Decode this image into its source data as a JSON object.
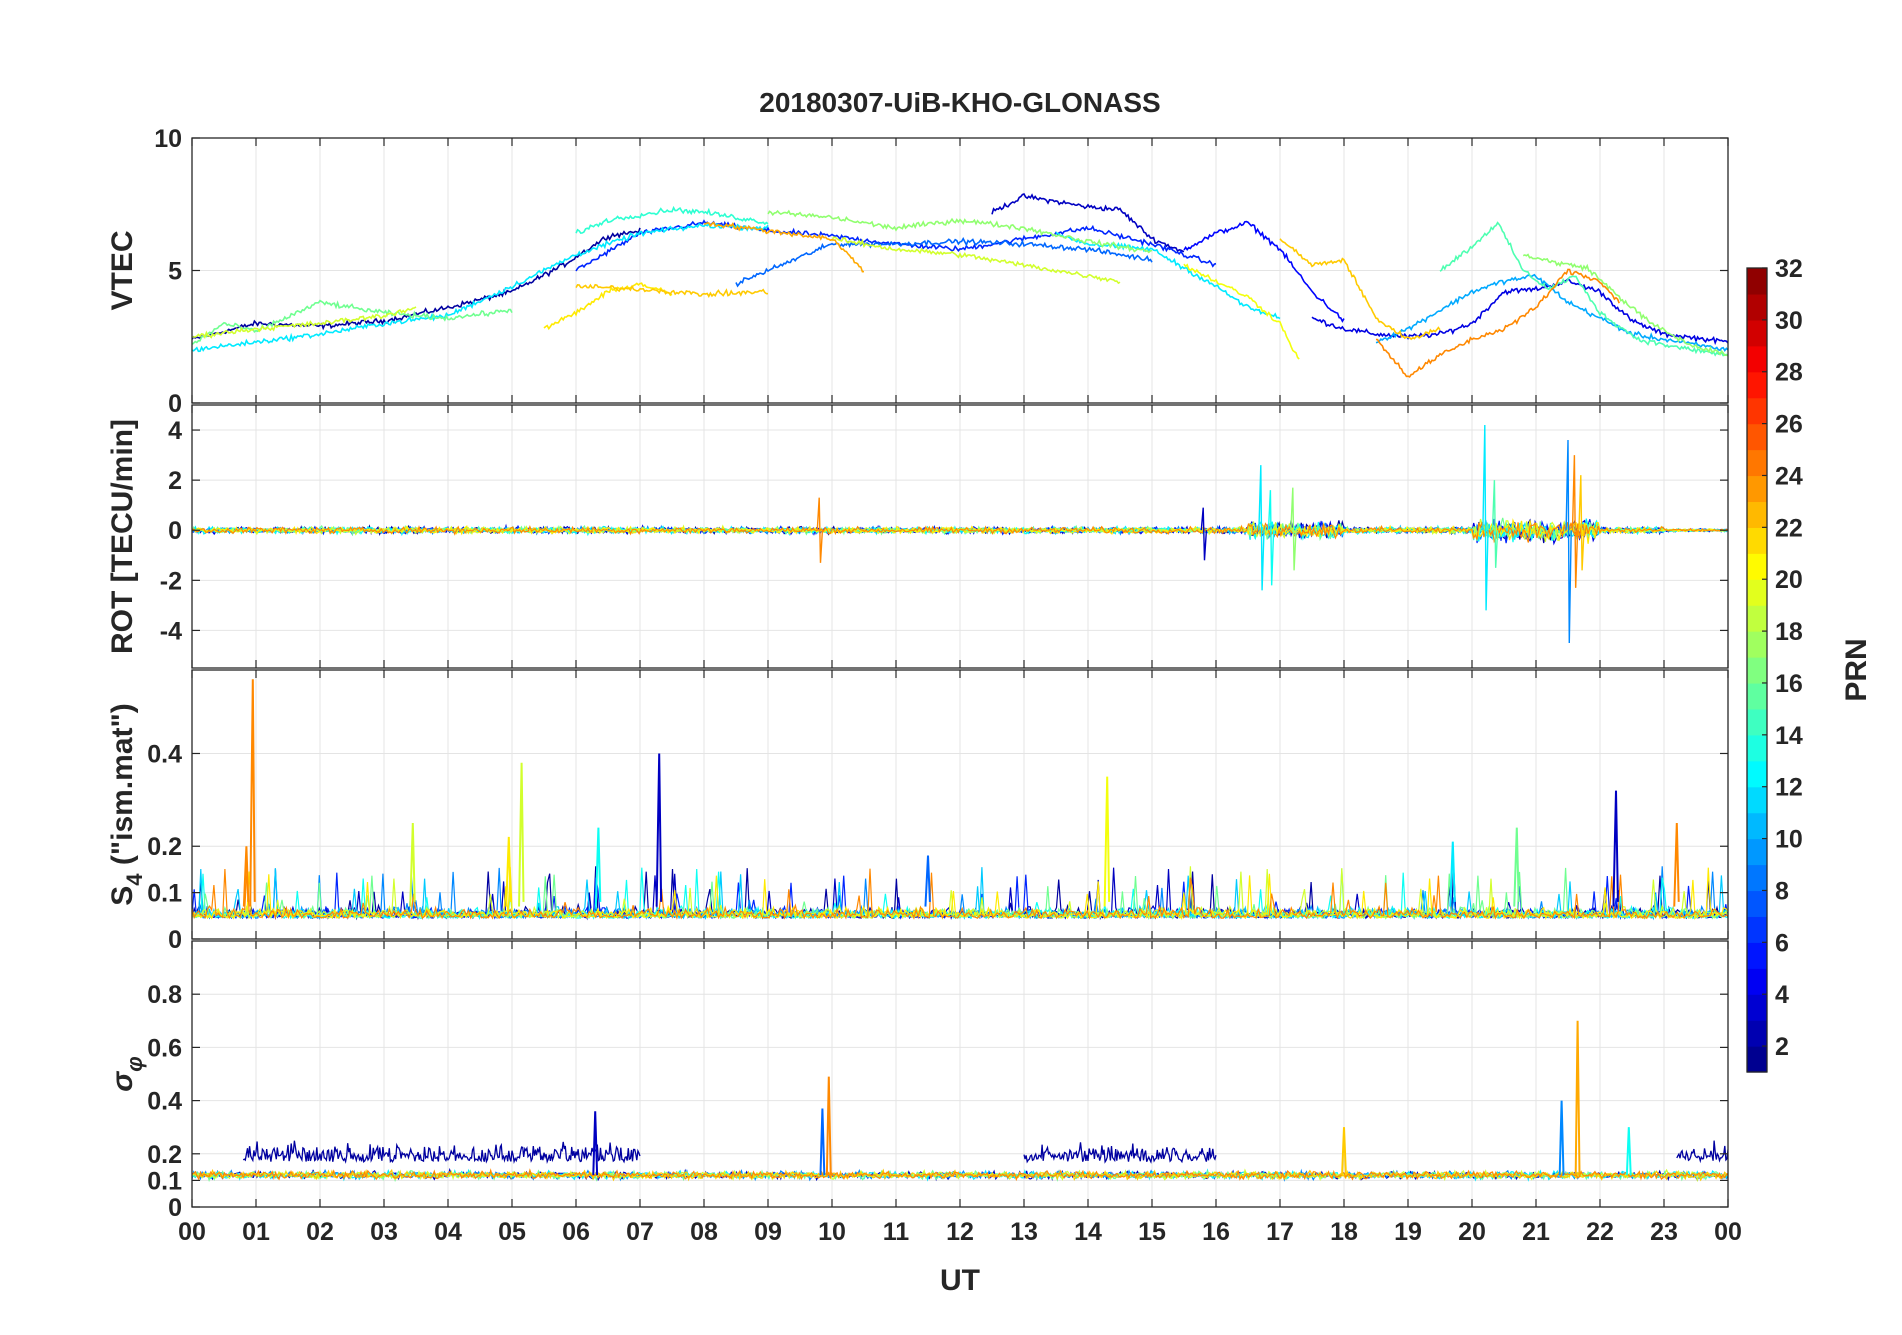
{
  "chart_data": {
    "title": "20180307-UiB-KHO-GLONASS",
    "type": "line",
    "xlabel": "UT",
    "xlim": [
      0,
      24
    ],
    "x_tick_labels": [
      "00",
      "01",
      "02",
      "03",
      "04",
      "05",
      "06",
      "07",
      "08",
      "09",
      "10",
      "11",
      "12",
      "13",
      "14",
      "15",
      "16",
      "17",
      "18",
      "19",
      "20",
      "21",
      "22",
      "23",
      "00"
    ],
    "colorbar": {
      "label": "PRN",
      "range": [
        1,
        32
      ],
      "ticks": [
        "2",
        "4",
        "6",
        "8",
        "10",
        "12",
        "14",
        "16",
        "18",
        "20",
        "22",
        "24",
        "26",
        "28",
        "30",
        "32"
      ],
      "colormap": "jet"
    },
    "panels": [
      {
        "ylabel": "VTEC",
        "ylim": [
          0,
          10
        ],
        "y_ticks": [
          0,
          5,
          10
        ],
        "y_tick_labels": [
          "0",
          "5",
          "10"
        ],
        "series": [
          {
            "prn": 2,
            "points": [
              [
                0.0,
                2.4
              ],
              [
                1.0,
                3.0
              ],
              [
                2.0,
                2.9
              ],
              [
                3.0,
                3.1
              ],
              [
                4.0,
                3.6
              ],
              [
                5.0,
                4.2
              ],
              [
                5.8,
                5.2
              ],
              [
                6.5,
                6.3
              ],
              [
                7.0,
                6.5
              ]
            ]
          },
          {
            "prn": 3,
            "points": [
              [
                12.5,
                7.2
              ],
              [
                13.0,
                7.8
              ],
              [
                13.5,
                7.6
              ],
              [
                14.0,
                7.4
              ],
              [
                14.5,
                7.3
              ],
              [
                15.0,
                6.2
              ],
              [
                15.5,
                5.7
              ]
            ]
          },
          {
            "prn": 4,
            "points": [
              [
                17.5,
                3.2
              ],
              [
                18.0,
                2.8
              ],
              [
                18.5,
                2.6
              ],
              [
                19.0,
                2.5
              ],
              [
                19.5,
                2.6
              ],
              [
                20.0,
                3.0
              ],
              [
                20.5,
                4.2
              ],
              [
                21.0,
                4.3
              ],
              [
                21.5,
                4.6
              ],
              [
                22.0,
                4.2
              ],
              [
                22.5,
                3.1
              ],
              [
                23.0,
                2.6
              ],
              [
                24.0,
                2.3
              ]
            ]
          },
          {
            "prn": 5,
            "points": [
              [
                15.5,
                5.8
              ],
              [
                16.0,
                6.4
              ],
              [
                16.5,
                6.8
              ],
              [
                17.0,
                5.8
              ],
              [
                17.5,
                4.2
              ],
              [
                18.0,
                3.1
              ]
            ]
          },
          {
            "prn": 6,
            "points": [
              [
                6.0,
                5.0
              ],
              [
                7.0,
                6.4
              ],
              [
                8.0,
                6.8
              ],
              [
                9.0,
                6.5
              ],
              [
                10.0,
                6.3
              ],
              [
                11.0,
                6.0
              ],
              [
                12.0,
                5.8
              ],
              [
                13.0,
                6.2
              ],
              [
                14.0,
                6.6
              ],
              [
                15.0,
                6.0
              ],
              [
                16.0,
                5.2
              ]
            ]
          },
          {
            "prn": 8,
            "points": [
              [
                8.5,
                4.5
              ],
              [
                9.0,
                5.0
              ],
              [
                10.0,
                6.0
              ],
              [
                11.0,
                6.0
              ],
              [
                12.0,
                6.1
              ],
              [
                13.0,
                6.0
              ],
              [
                14.0,
                5.8
              ],
              [
                15.0,
                5.4
              ]
            ]
          },
          {
            "prn": 10,
            "points": [
              [
                18.5,
                2.3
              ],
              [
                19.0,
                2.8
              ],
              [
                19.5,
                3.5
              ],
              [
                20.0,
                4.2
              ],
              [
                20.5,
                4.6
              ],
              [
                21.0,
                4.8
              ],
              [
                21.5,
                3.8
              ],
              [
                22.0,
                3.2
              ],
              [
                22.5,
                2.6
              ],
              [
                23.0,
                2.4
              ],
              [
                24.0,
                2.0
              ]
            ]
          },
          {
            "prn": 12,
            "points": [
              [
                0.0,
                2.0
              ],
              [
                1.0,
                2.3
              ],
              [
                2.0,
                2.6
              ],
              [
                3.0,
                3.0
              ],
              [
                4.0,
                3.3
              ],
              [
                5.0,
                4.4
              ],
              [
                6.0,
                5.6
              ],
              [
                7.0,
                6.4
              ],
              [
                8.0,
                6.7
              ],
              [
                9.0,
                6.6
              ]
            ]
          },
          {
            "prn": 12,
            "points": [
              [
                13.5,
                6.4
              ],
              [
                14.0,
                6.0
              ],
              [
                15.0,
                5.8
              ],
              [
                16.0,
                4.4
              ],
              [
                16.5,
                3.6
              ],
              [
                17.0,
                3.2
              ]
            ]
          },
          {
            "prn": 14,
            "points": [
              [
                6.0,
                6.4
              ],
              [
                6.5,
                6.9
              ],
              [
                7.0,
                7.1
              ],
              [
                7.5,
                7.3
              ],
              [
                8.0,
                7.2
              ],
              [
                8.5,
                7.0
              ],
              [
                9.0,
                6.8
              ]
            ]
          },
          {
            "prn": 15,
            "points": [
              [
                19.5,
                5.0
              ],
              [
                20.0,
                5.9
              ],
              [
                20.4,
                6.8
              ],
              [
                20.8,
                5.0
              ],
              [
                21.2,
                4.3
              ],
              [
                21.6,
                4.8
              ],
              [
                22.0,
                3.4
              ],
              [
                22.6,
                2.4
              ],
              [
                23.2,
                2.1
              ],
              [
                24.0,
                1.8
              ]
            ]
          },
          {
            "prn": 16,
            "points": [
              [
                0.0,
                2.2
              ],
              [
                0.5,
                3.0
              ],
              [
                1.0,
                2.7
              ],
              [
                2.0,
                3.8
              ],
              [
                3.0,
                3.4
              ],
              [
                4.0,
                3.2
              ],
              [
                5.0,
                3.5
              ]
            ]
          },
          {
            "prn": 17,
            "points": [
              [
                9.0,
                7.2
              ],
              [
                10.0,
                7.0
              ],
              [
                11.0,
                6.6
              ],
              [
                12.0,
                6.9
              ],
              [
                13.0,
                6.6
              ],
              [
                14.0,
                6.1
              ],
              [
                15.0,
                5.7
              ]
            ]
          },
          {
            "prn": 17,
            "points": [
              [
                20.8,
                5.6
              ],
              [
                21.3,
                5.3
              ],
              [
                21.8,
                5.1
              ],
              [
                22.3,
                4.0
              ],
              [
                22.8,
                3.0
              ],
              [
                23.4,
                2.2
              ],
              [
                24.0,
                1.8
              ]
            ]
          },
          {
            "prn": 19,
            "points": [
              [
                0.0,
                2.5
              ],
              [
                1.0,
                2.8
              ],
              [
                2.0,
                3.0
              ],
              [
                3.0,
                3.3
              ],
              [
                3.5,
                3.6
              ]
            ]
          },
          {
            "prn": 19,
            "points": [
              [
                10.0,
                6.2
              ],
              [
                11.0,
                5.8
              ],
              [
                12.0,
                5.6
              ],
              [
                13.0,
                5.2
              ],
              [
                14.0,
                4.8
              ],
              [
                14.5,
                4.6
              ]
            ]
          },
          {
            "prn": 20,
            "points": [
              [
                15.5,
                5.2
              ],
              [
                16.0,
                4.6
              ],
              [
                16.5,
                4.0
              ],
              [
                17.0,
                3.0
              ],
              [
                17.3,
                1.6
              ]
            ]
          },
          {
            "prn": 21,
            "points": [
              [
                5.5,
                2.8
              ],
              [
                6.0,
                3.4
              ],
              [
                6.5,
                4.2
              ],
              [
                7.0,
                4.5
              ],
              [
                7.5,
                4.1
              ]
            ]
          },
          {
            "prn": 22,
            "points": [
              [
                6.0,
                4.4
              ],
              [
                7.0,
                4.3
              ],
              [
                8.0,
                4.1
              ],
              [
                9.0,
                4.2
              ]
            ]
          },
          {
            "prn": 22,
            "points": [
              [
                17.0,
                6.2
              ],
              [
                17.5,
                5.2
              ],
              [
                18.0,
                5.4
              ],
              [
                18.5,
                3.2
              ],
              [
                19.0,
                2.4
              ],
              [
                19.5,
                2.8
              ]
            ]
          },
          {
            "prn": 23,
            "points": [
              [
                8.0,
                6.8
              ],
              [
                9.0,
                6.5
              ],
              [
                10.0,
                6.2
              ],
              [
                10.5,
                5.0
              ]
            ]
          },
          {
            "prn": 24,
            "points": [
              [
                18.5,
                2.4
              ],
              [
                19.0,
                1.0
              ],
              [
                19.5,
                1.8
              ],
              [
                20.0,
                2.4
              ],
              [
                20.5,
                2.8
              ],
              [
                21.0,
                3.6
              ],
              [
                21.5,
                5.0
              ],
              [
                22.0,
                4.6
              ],
              [
                22.3,
                3.8
              ]
            ]
          }
        ]
      },
      {
        "ylabel": "ROT [TECU/min]",
        "ylim": [
          -5.5,
          5
        ],
        "y_ticks": [
          -4,
          -2,
          0,
          2,
          4
        ],
        "y_tick_labels": [
          "-4",
          "-2",
          "0",
          "2",
          "4"
        ]
      },
      {
        "ylabel": "S4 (\"ism.mat\")",
        "ylabel_main": "S",
        "ylabel_sub": "4",
        "ylabel_rest": " (\"ism.mat\")",
        "ylim": [
          0,
          0.58
        ],
        "y_ticks": [
          0,
          0.1,
          0.2,
          0.4
        ],
        "y_tick_labels": [
          "0",
          "0.1",
          "0.2",
          "0.4"
        ],
        "spikes": [
          {
            "x": 0.95,
            "y": 0.56,
            "prn": 24
          },
          {
            "x": 0.85,
            "y": 0.2,
            "prn": 24
          },
          {
            "x": 5.15,
            "y": 0.38,
            "prn": 19
          },
          {
            "x": 4.95,
            "y": 0.22,
            "prn": 21
          },
          {
            "x": 3.45,
            "y": 0.25,
            "prn": 19
          },
          {
            "x": 7.3,
            "y": 0.4,
            "prn": 3
          },
          {
            "x": 6.35,
            "y": 0.24,
            "prn": 13
          },
          {
            "x": 14.3,
            "y": 0.35,
            "prn": 20
          },
          {
            "x": 22.25,
            "y": 0.32,
            "prn": 3
          },
          {
            "x": 23.2,
            "y": 0.25,
            "prn": 24
          },
          {
            "x": 20.7,
            "y": 0.24,
            "prn": 16
          },
          {
            "x": 19.7,
            "y": 0.21,
            "prn": 12
          },
          {
            "x": 11.5,
            "y": 0.18,
            "prn": 8
          }
        ]
      },
      {
        "ylabel": "σφ",
        "ylabel_main": "σ",
        "ylabel_sub": "φ",
        "ylim": [
          0,
          1.0
        ],
        "y_ticks": [
          0,
          0.1,
          0.2,
          0.4,
          0.6,
          0.8
        ],
        "y_tick_labels": [
          "0",
          "0.1",
          "0.2",
          "0.4",
          "0.6",
          "0.8"
        ],
        "spikes": [
          {
            "x": 21.65,
            "y": 0.7,
            "prn": 23
          },
          {
            "x": 9.95,
            "y": 0.49,
            "prn": 24
          },
          {
            "x": 9.85,
            "y": 0.37,
            "prn": 8
          },
          {
            "x": 6.3,
            "y": 0.36,
            "prn": 3
          },
          {
            "x": 21.4,
            "y": 0.4,
            "prn": 9
          },
          {
            "x": 22.45,
            "y": 0.3,
            "prn": 13
          },
          {
            "x": 18.0,
            "y": 0.3,
            "prn": 22
          }
        ],
        "elevated_periods": [
          [
            0.8,
            7.0
          ],
          [
            13.0,
            16.0
          ],
          [
            23.2,
            24.0
          ]
        ]
      }
    ]
  }
}
